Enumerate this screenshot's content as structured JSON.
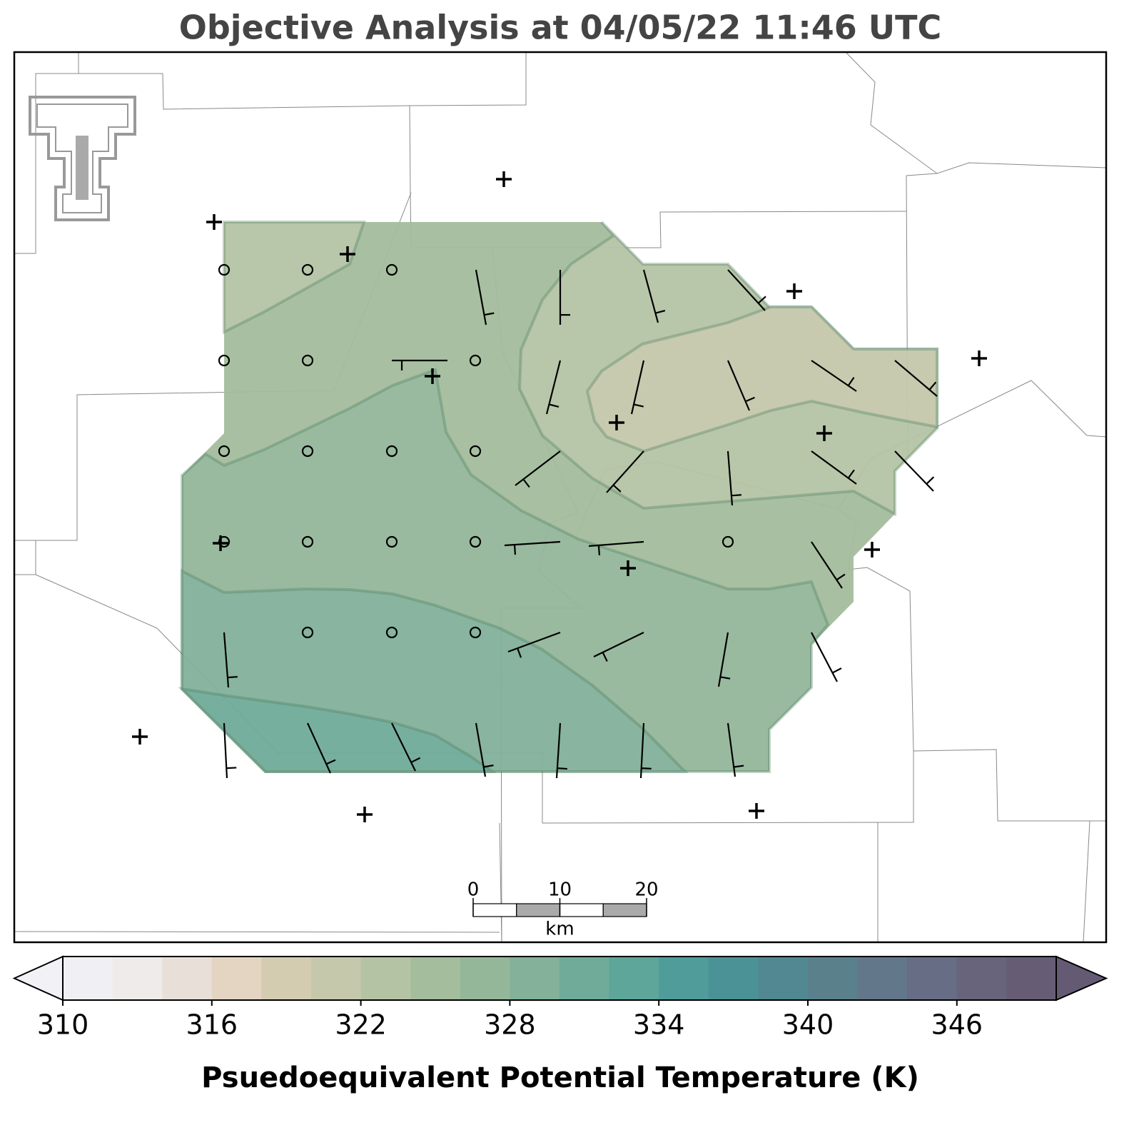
{
  "title": "Objective Analysis at 04/05/22 11:46 UTC",
  "colorbar": {
    "label": "Psuedoequivalent Potential Temperature (K)",
    "boundaries": [
      310,
      312,
      314,
      316,
      318,
      320,
      322,
      324,
      326,
      328,
      330,
      332,
      334,
      336,
      338,
      340,
      342,
      344,
      346,
      348,
      350
    ],
    "colors": [
      "#f0eff3",
      "#eeebea",
      "#e8e0d8",
      "#e3d5c1",
      "#d4ccb1",
      "#c5c8ab",
      "#b5c3a5",
      "#a4bd9d",
      "#94b79a",
      "#83b19a",
      "#70ab99",
      "#5ea59a",
      "#4f9c9a",
      "#4b9296",
      "#518891",
      "#5a808c",
      "#63778a",
      "#666d84",
      "#67647b",
      "#665d75"
    ],
    "under_color": "#f2f1f6",
    "over_color": "#655a74",
    "ticks": [
      310,
      316,
      322,
      328,
      334,
      340,
      346
    ]
  },
  "scale_bar": {
    "ticks": [
      0,
      10,
      20
    ],
    "unit": "km"
  }
}
